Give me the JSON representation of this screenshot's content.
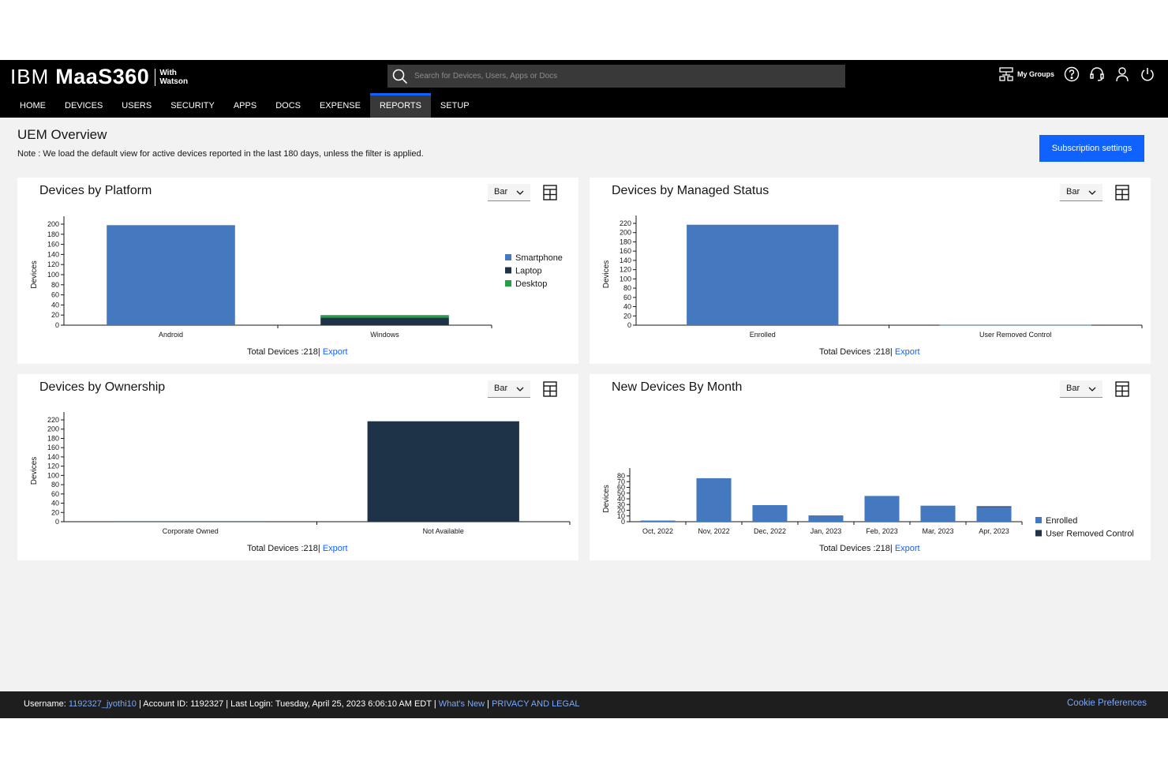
{
  "header": {
    "brand_ibm": "IBM",
    "brand_maas": "MaaS360",
    "brand_with": "With",
    "brand_watson": "Watson",
    "search_placeholder": "Search for Devices, Users, Apps or Docs",
    "my_groups": "My Groups"
  },
  "nav": {
    "items": [
      "HOME",
      "DEVICES",
      "USERS",
      "SECURITY",
      "APPS",
      "DOCS",
      "EXPENSE",
      "REPORTS",
      "SETUP"
    ],
    "active": "REPORTS"
  },
  "page": {
    "title": "UEM Overview",
    "note": "Note : We load the default view for active devices reported in the last 180 days, unless the filter is applied.",
    "subscription_button": "Subscription settings"
  },
  "cards": {
    "platform": {
      "title": "Devices by Platform",
      "select": "Bar",
      "total": "Total Devices :218|",
      "export": "Export"
    },
    "managed": {
      "title": "Devices by Managed Status",
      "select": "Bar",
      "total": "Total Devices :218|",
      "export": "Export"
    },
    "ownership": {
      "title": "Devices by Ownership",
      "select": "Bar",
      "total": "Total Devices :218|",
      "export": "Export"
    },
    "month": {
      "title": "New Devices By Month",
      "select": "Bar",
      "total": "Total Devices :218|",
      "export": "Export"
    }
  },
  "chart_data": [
    {
      "id": "platform",
      "type": "bar",
      "stacked": true,
      "ylabel": "Devices",
      "ylim": [
        0,
        200
      ],
      "yticks": [
        0,
        20,
        40,
        60,
        80,
        100,
        120,
        140,
        160,
        180,
        200
      ],
      "categories": [
        "Android",
        "Windows"
      ],
      "series": [
        {
          "name": "Smartphone",
          "values": [
            198,
            0
          ],
          "color": "#4479bf"
        },
        {
          "name": "Laptop",
          "values": [
            0,
            15
          ],
          "color": "#1f3348"
        },
        {
          "name": "Desktop",
          "values": [
            0,
            5
          ],
          "color": "#24a148"
        }
      ],
      "legend": "right"
    },
    {
      "id": "managed",
      "type": "bar",
      "ylabel": "Devices",
      "ylim": [
        0,
        220
      ],
      "yticks": [
        0,
        20,
        40,
        60,
        80,
        100,
        120,
        140,
        160,
        180,
        200,
        220
      ],
      "categories": [
        "Enrolled",
        "User Removed Control"
      ],
      "series": [
        {
          "values": [
            217,
            1
          ],
          "color": "#4479bf"
        }
      ]
    },
    {
      "id": "ownership",
      "type": "bar",
      "ylabel": "Devices",
      "ylim": [
        0,
        220
      ],
      "yticks": [
        0,
        20,
        40,
        60,
        80,
        100,
        120,
        140,
        160,
        180,
        200,
        220
      ],
      "categories": [
        "Corporate Owned",
        "Not Available"
      ],
      "series": [
        {
          "values": [
            1,
            217
          ],
          "color": "#1f3348"
        }
      ]
    },
    {
      "id": "month",
      "type": "bar",
      "stacked": true,
      "ylabel": "Devices",
      "ylim": [
        0,
        80
      ],
      "yticks": [
        0,
        10,
        20,
        30,
        40,
        50,
        60,
        70,
        80
      ],
      "categories": [
        "Oct, 2022",
        "Nov, 2022",
        "Dec, 2022",
        "Jan, 2023",
        "Feb, 2023",
        "Mar, 2023",
        "Apr, 2023"
      ],
      "series": [
        {
          "name": "Enrolled",
          "values": [
            2,
            76,
            29,
            11,
            45,
            28,
            26
          ],
          "color": "#4479bf"
        },
        {
          "name": "User Removed Control",
          "values": [
            0,
            0,
            0,
            0,
            0,
            0,
            1
          ],
          "color": "#1f3348"
        }
      ],
      "legend": "right"
    }
  ],
  "footer": {
    "username_label": "Username:",
    "username": "1192327_jyothi10",
    "account": "| Account ID:  1192327  | Last Login: Tuesday, April 25, 2023 6:06:10 AM EDT  |",
    "whats_new": "What's New",
    "pipe": "|",
    "privacy": "PRIVACY AND LEGAL",
    "cookie": "Cookie Preferences"
  }
}
